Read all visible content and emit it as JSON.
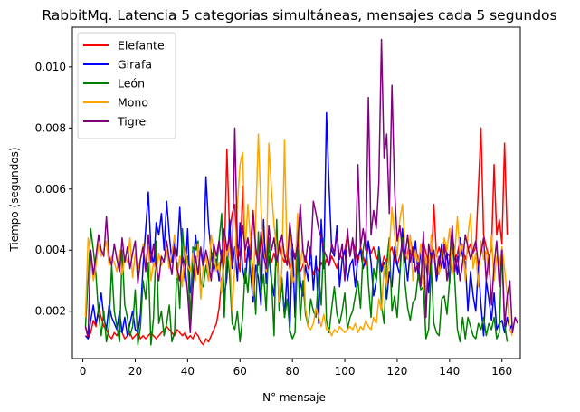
{
  "chart_data": {
    "type": "line",
    "title": "RabbitMq. Latencia 5 categorias simultáneas, mensajes cada 5 segundos",
    "xlabel": "N° mensaje",
    "ylabel": "Tiempo (segundos)",
    "xlim": [
      -4,
      167
    ],
    "ylim": [
      0.00045,
      0.0113
    ],
    "x_ticks": [
      0,
      20,
      40,
      60,
      80,
      100,
      120,
      140,
      160
    ],
    "y_ticks": [
      0.002,
      0.004,
      0.006,
      0.008,
      0.01
    ],
    "y_tick_labels": [
      "0.002",
      "0.004",
      "0.006",
      "0.008",
      "0.010"
    ],
    "grid": false,
    "legend_position": "top-left",
    "series": [
      {
        "name": "Elefante",
        "color": "#ff0000",
        "values": [
          0.0015,
          0.0011,
          0.0013,
          0.0017,
          0.0015,
          0.0021,
          0.0018,
          0.0015,
          0.0014,
          0.0012,
          0.0011,
          0.0013,
          0.0012,
          0.0014,
          0.0013,
          0.0011,
          0.0012,
          0.0013,
          0.0011,
          0.0012,
          0.0013,
          0.0011,
          0.0012,
          0.0011,
          0.0012,
          0.0013,
          0.0012,
          0.0011,
          0.0012,
          0.0013,
          0.0014,
          0.0015,
          0.0014,
          0.0013,
          0.0012,
          0.0014,
          0.0013,
          0.0012,
          0.0013,
          0.0011,
          0.0012,
          0.0011,
          0.0013,
          0.0012,
          0.001,
          0.0009,
          0.0011,
          0.001,
          0.0012,
          0.0014,
          0.0016,
          0.0021,
          0.003,
          0.0036,
          0.0073,
          0.0046,
          0.0052,
          0.0055,
          0.0038,
          0.0033,
          0.0061,
          0.0036,
          0.0038,
          0.0042,
          0.0053,
          0.0039,
          0.0036,
          0.0042,
          0.0045,
          0.0037,
          0.0041,
          0.0036,
          0.0039,
          0.0035,
          0.0043,
          0.0038,
          0.0036,
          0.004,
          0.0034,
          0.0037,
          0.0039,
          0.0036,
          0.0033,
          0.0035,
          0.0038,
          0.0034,
          0.0036,
          0.0032,
          0.0035,
          0.0033,
          0.0036,
          0.0034,
          0.0037,
          0.0035,
          0.0038,
          0.0036,
          0.0034,
          0.0039,
          0.0037,
          0.004,
          0.0045,
          0.0038,
          0.0043,
          0.004,
          0.0036,
          0.0041,
          0.0038,
          0.0035,
          0.0042,
          0.0039,
          0.0041,
          0.0037,
          0.0039,
          0.0034,
          0.0038,
          0.0036,
          0.0039,
          0.0041,
          0.0037,
          0.0035,
          0.0038,
          0.0042,
          0.0036,
          0.0039,
          0.0044,
          0.0038,
          0.0041,
          0.0037,
          0.004,
          0.0043,
          0.0039,
          0.0036,
          0.0035,
          0.0055,
          0.0038,
          0.0041,
          0.0037,
          0.0042,
          0.0039,
          0.0038,
          0.004,
          0.0037,
          0.0039,
          0.0043,
          0.0041,
          0.0037,
          0.004,
          0.0042,
          0.0039,
          0.0041,
          0.006,
          0.008,
          0.0045,
          0.0041,
          0.0038,
          0.004,
          0.0068,
          0.0045,
          0.005,
          0.0042,
          0.0075,
          0.0045
        ]
      },
      {
        "name": "Girafa",
        "color": "#0000ff",
        "values": [
          0.0012,
          0.0011,
          0.0017,
          0.0022,
          0.0016,
          0.002,
          0.0026,
          0.0018,
          0.0014,
          0.0022,
          0.0018,
          0.0016,
          0.0014,
          0.002,
          0.0013,
          0.0018,
          0.0012,
          0.0016,
          0.002,
          0.0014,
          0.0013,
          0.0019,
          0.0035,
          0.0047,
          0.0059,
          0.004,
          0.0035,
          0.0049,
          0.0045,
          0.0052,
          0.004,
          0.0056,
          0.0045,
          0.0036,
          0.0043,
          0.0038,
          0.0054,
          0.0038,
          0.003,
          0.0047,
          0.0026,
          0.003,
          0.0045,
          0.0038,
          0.004,
          0.0034,
          0.0064,
          0.0048,
          0.0039,
          0.0033,
          0.0037,
          0.003,
          0.004,
          0.0025,
          0.0031,
          0.005,
          0.0034,
          0.0041,
          0.003,
          0.0049,
          0.0034,
          0.0029,
          0.0041,
          0.0033,
          0.0023,
          0.0035,
          0.0031,
          0.0022,
          0.005,
          0.0029,
          0.0038,
          0.003,
          0.0025,
          0.0042,
          0.002,
          0.003,
          0.0018,
          0.0033,
          0.0013,
          0.0042,
          0.0018,
          0.0047,
          0.003,
          0.0025,
          0.0035,
          0.003,
          0.0041,
          0.0027,
          0.0038,
          0.0016,
          0.005,
          0.0034,
          0.0085,
          0.0061,
          0.004,
          0.0038,
          0.0048,
          0.0028,
          0.0037,
          0.004,
          0.003,
          0.0035,
          0.0037,
          0.0028,
          0.0038,
          0.004,
          0.0034,
          0.0037,
          0.0043,
          0.0036,
          0.0025,
          0.003,
          0.0041,
          0.0033,
          0.0036,
          0.0024,
          0.0033,
          0.0028,
          0.0041,
          0.0035,
          0.0032,
          0.0047,
          0.0038,
          0.003,
          0.004,
          0.0036,
          0.0043,
          0.0031,
          0.004,
          0.0028,
          0.0037,
          0.0026,
          0.0039,
          0.004,
          0.003,
          0.0035,
          0.0042,
          0.0034,
          0.0039,
          0.0029,
          0.0045,
          0.0039,
          0.0032,
          0.0044,
          0.0038,
          0.0036,
          0.002,
          0.0033,
          0.0025,
          0.002,
          0.0035,
          0.0022,
          0.0012,
          0.003,
          0.0024,
          0.0017,
          0.0026,
          0.0014,
          0.0016,
          0.0017,
          0.0013,
          0.0018,
          0.0014,
          0.0016
        ]
      },
      {
        "name": "León",
        "color": "#008000",
        "values": [
          0.0015,
          0.003,
          0.0047,
          0.004,
          0.0032,
          0.0019,
          0.0012,
          0.002,
          0.001,
          0.0015,
          0.0035,
          0.002,
          0.0015,
          0.001,
          0.004,
          0.0022,
          0.0018,
          0.0012,
          0.0015,
          0.0027,
          0.0009,
          0.0015,
          0.003,
          0.0024,
          0.0036,
          0.0009,
          0.0018,
          0.0043,
          0.0016,
          0.002,
          0.0012,
          0.0016,
          0.0022,
          0.001,
          0.0013,
          0.0036,
          0.0021,
          0.0047,
          0.0035,
          0.0038,
          0.0017,
          0.0041,
          0.004,
          0.0043,
          0.0029,
          0.0028,
          0.0035,
          0.003,
          0.0038,
          0.004,
          0.0034,
          0.0043,
          0.0052,
          0.0018,
          0.004,
          0.0032,
          0.0016,
          0.0014,
          0.002,
          0.001,
          0.0018,
          0.0034,
          0.0026,
          0.004,
          0.0033,
          0.0019,
          0.0046,
          0.0026,
          0.0032,
          0.002,
          0.0044,
          0.0031,
          0.0012,
          0.005,
          0.002,
          0.0031,
          0.0018,
          0.0024,
          0.0014,
          0.0011,
          0.0013,
          0.004,
          0.0017,
          0.003,
          0.0019,
          0.0015,
          0.0024,
          0.002,
          0.0018,
          0.0033,
          0.0022,
          0.0044,
          0.0017,
          0.0013,
          0.0021,
          0.0028,
          0.0019,
          0.0016,
          0.002,
          0.0026,
          0.0014,
          0.0018,
          0.002,
          0.0025,
          0.003,
          0.0021,
          0.004,
          0.0046,
          0.0029,
          0.0018,
          0.0034,
          0.003,
          0.004,
          0.0022,
          0.0016,
          0.0036,
          0.0044,
          0.002,
          0.0025,
          0.0018,
          0.0032,
          0.0044,
          0.0029,
          0.0021,
          0.0017,
          0.0023,
          0.0024,
          0.0032,
          0.0027,
          0.0028,
          0.0011,
          0.0014,
          0.0035,
          0.0016,
          0.0013,
          0.0012,
          0.0024,
          0.0025,
          0.0019,
          0.003,
          0.0046,
          0.003,
          0.0014,
          0.001,
          0.0018,
          0.0011,
          0.0018,
          0.0015,
          0.0012,
          0.0011,
          0.0016,
          0.0014,
          0.0018,
          0.0012,
          0.0016,
          0.0014,
          0.0018,
          0.0011,
          0.0013,
          0.0041,
          0.0016,
          0.001
        ]
      },
      {
        "name": "Mono",
        "color": "#ffa500",
        "values": [
          0.0018,
          0.0044,
          0.0038,
          0.003,
          0.0035,
          0.0042,
          0.0038,
          0.004,
          0.0043,
          0.0035,
          0.0038,
          0.0036,
          0.0033,
          0.004,
          0.0032,
          0.0038,
          0.0036,
          0.0044,
          0.0031,
          0.0039,
          0.0034,
          0.0037,
          0.0042,
          0.0035,
          0.0041,
          0.003,
          0.0036,
          0.0033,
          0.0039,
          0.0035,
          0.0037,
          0.004,
          0.0034,
          0.0039,
          0.0045,
          0.0031,
          0.0038,
          0.0028,
          0.0041,
          0.0035,
          0.0033,
          0.0039,
          0.003,
          0.0042,
          0.0024,
          0.0035,
          0.0038,
          0.003,
          0.0045,
          0.004,
          0.0033,
          0.0036,
          0.0026,
          0.0047,
          0.0038,
          0.0042,
          0.002,
          0.0035,
          0.0055,
          0.0068,
          0.0072,
          0.004,
          0.0055,
          0.0043,
          0.0025,
          0.005,
          0.0078,
          0.0054,
          0.004,
          0.0033,
          0.0075,
          0.006,
          0.0048,
          0.0041,
          0.0023,
          0.0034,
          0.0076,
          0.0035,
          0.0045,
          0.0029,
          0.0032,
          0.0052,
          0.0035,
          0.0042,
          0.0021,
          0.0015,
          0.0014,
          0.0016,
          0.0021,
          0.0018,
          0.0015,
          0.0019,
          0.0014,
          0.0014,
          0.0012,
          0.0014,
          0.0013,
          0.0015,
          0.0014,
          0.0013,
          0.0014,
          0.0015,
          0.0014,
          0.0016,
          0.0013,
          0.0015,
          0.0014,
          0.0017,
          0.0015,
          0.0014,
          0.0018,
          0.0016,
          0.0024,
          0.002,
          0.0035,
          0.0028,
          0.004,
          0.0054,
          0.0045,
          0.0038,
          0.005,
          0.0055,
          0.0041,
          0.0037,
          0.0045,
          0.003,
          0.004,
          0.0035,
          0.0042,
          0.0027,
          0.0038,
          0.0032,
          0.0045,
          0.0036,
          0.004,
          0.0032,
          0.0038,
          0.0044,
          0.004,
          0.0047,
          0.0032,
          0.0039,
          0.0051,
          0.0038,
          0.0042,
          0.003,
          0.0045,
          0.0052,
          0.0034,
          0.0039,
          0.0028,
          0.0043,
          0.0037,
          0.004,
          0.0032,
          0.0045,
          0.003,
          0.0038,
          0.0035,
          0.0041,
          0.0034,
          0.0025,
          0.0014,
          0.0012
        ]
      },
      {
        "name": "Tigre",
        "color": "#800080",
        "values": [
          0.0015,
          0.0012,
          0.004,
          0.0032,
          0.0038,
          0.0045,
          0.004,
          0.0038,
          0.0051,
          0.0038,
          0.0035,
          0.0042,
          0.0037,
          0.0033,
          0.0044,
          0.0036,
          0.0041,
          0.0034,
          0.0039,
          0.0043,
          0.0029,
          0.0037,
          0.0041,
          0.0033,
          0.0045,
          0.0036,
          0.0042,
          0.0035,
          0.003,
          0.0038,
          0.0036,
          0.0043,
          0.0037,
          0.0032,
          0.0041,
          0.0034,
          0.003,
          0.0038,
          0.0035,
          0.0026,
          0.0013,
          0.0028,
          0.0038,
          0.0032,
          0.0041,
          0.0035,
          0.004,
          0.0036,
          0.003,
          0.0042,
          0.0038,
          0.0043,
          0.0036,
          0.0047,
          0.004,
          0.0045,
          0.0035,
          0.008,
          0.0042,
          0.0038,
          0.0048,
          0.004,
          0.0044,
          0.0037,
          0.0052,
          0.0041,
          0.0035,
          0.0046,
          0.0038,
          0.0034,
          0.0048,
          0.004,
          0.0044,
          0.0036,
          0.0041,
          0.0045,
          0.0038,
          0.0035,
          0.0049,
          0.0041,
          0.0037,
          0.0042,
          0.0055,
          0.004,
          0.0036,
          0.0043,
          0.0038,
          0.0056,
          0.0052,
          0.0047,
          0.0044,
          0.004,
          0.0038,
          0.0035,
          0.0042,
          0.0039,
          0.0045,
          0.0037,
          0.0042,
          0.003,
          0.0047,
          0.0038,
          0.0044,
          0.0035,
          0.0068,
          0.0041,
          0.0047,
          0.004,
          0.009,
          0.0045,
          0.0053,
          0.0047,
          0.0062,
          0.0109,
          0.007,
          0.0078,
          0.0052,
          0.0094,
          0.006,
          0.0043,
          0.0048,
          0.004,
          0.0038,
          0.0045,
          0.0036,
          0.0041,
          0.0033,
          0.0036,
          0.0028,
          0.0046,
          0.0018,
          0.0042,
          0.0037,
          0.004,
          0.0032,
          0.0038,
          0.0034,
          0.0042,
          0.003,
          0.0037,
          0.0048,
          0.0033,
          0.0038,
          0.003,
          0.0036,
          0.0045,
          0.0041,
          0.0037,
          0.004,
          0.0043,
          0.0035,
          0.0039,
          0.0044,
          0.003,
          0.0038,
          0.0022,
          0.0035,
          0.0043,
          0.0028,
          0.004,
          0.0015,
          0.0025,
          0.003,
          0.0013,
          0.0018,
          0.0016
        ]
      }
    ]
  }
}
